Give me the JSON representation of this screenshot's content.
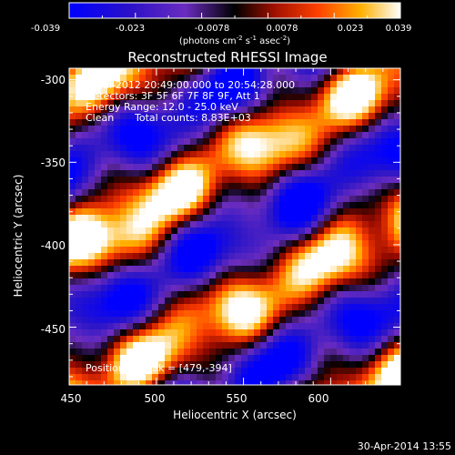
{
  "colorbar": {
    "ticks": [
      "-0.039",
      "-0.023",
      "-0.0078",
      "0.0078",
      "0.023",
      "0.039"
    ],
    "unit_parts": [
      "(photons cm",
      "-2",
      " s",
      "-1",
      " asec",
      "-2",
      ")"
    ]
  },
  "plot": {
    "title": "Reconstructed RHESSI Image",
    "xlabel": "Heliocentric X (arcsec)",
    "ylabel": "Heliocentric Y (arcsec)",
    "x_ticks": [
      "450",
      "500",
      "550",
      "600"
    ],
    "y_ticks": [
      "-300",
      "-350",
      "-400",
      "-450"
    ],
    "x_range": [
      450,
      640
    ],
    "y_range": [
      -485,
      -293
    ]
  },
  "info": {
    "time_range": "5-Jul-2012 20:49:00.000 to 20:54:28.000",
    "detectors": "Detectors: 3F 5F 6F 7F 8F 9F, Att 1",
    "energy": "Energy Range: 12.0 - 25.0 keV",
    "method": "Clean",
    "total_counts": "Total counts: 8.83E+03",
    "peak": "Position of Peak = [479,-394]"
  },
  "footer": {
    "timestamp": "30-Apr-2014 13:55"
  },
  "image_data": {
    "type": "heatmap",
    "value_range": [
      -0.039,
      0.039
    ],
    "peak": [
      479,
      -394
    ]
  }
}
